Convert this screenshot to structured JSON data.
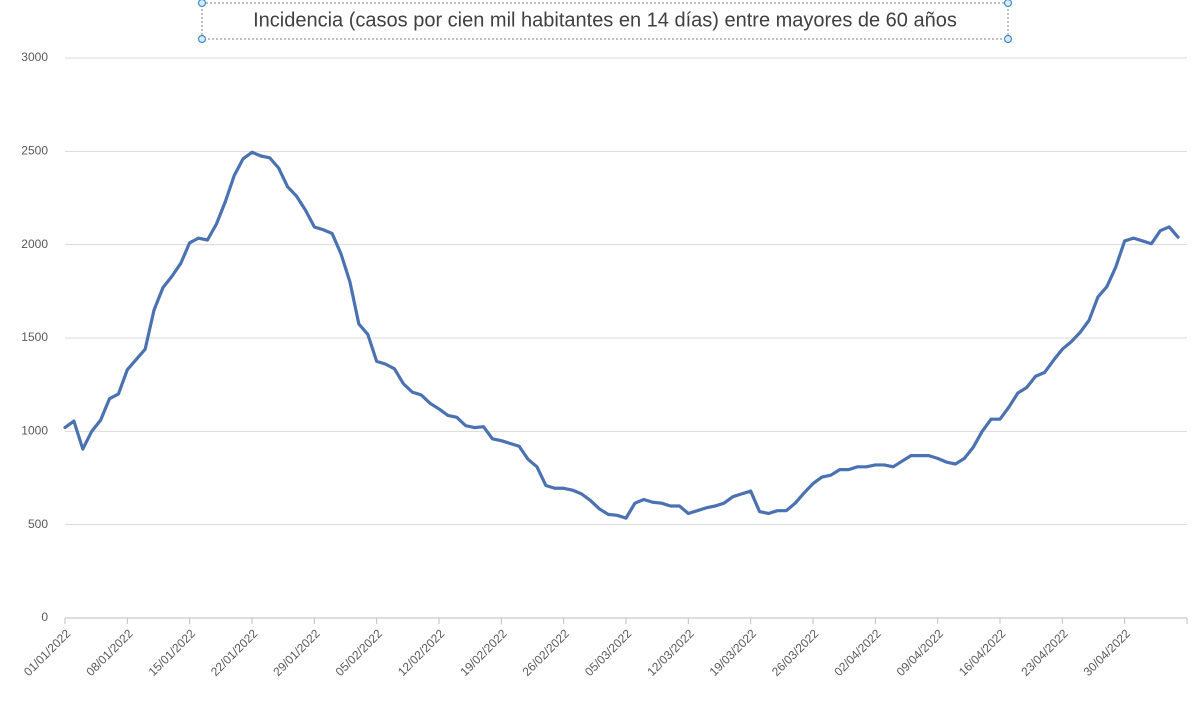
{
  "chart_data": {
    "type": "line",
    "title": "Incidencia (casos por cien mil habitantes en 14 días) entre mayores de 60 años",
    "color": "#4a72b2",
    "grid": true,
    "ylim": [
      0,
      3000
    ],
    "yticks": [
      0,
      500,
      1000,
      1500,
      2000,
      2500,
      3000
    ],
    "xticks": [
      "01/01/2022",
      "08/01/2022",
      "15/01/2022",
      "22/01/2022",
      "29/01/2022",
      "05/02/2022",
      "12/02/2022",
      "19/02/2022",
      "26/02/2022",
      "05/03/2022",
      "12/03/2022",
      "19/03/2022",
      "26/03/2022",
      "02/04/2022",
      "09/04/2022",
      "16/04/2022",
      "23/04/2022",
      "30/04/2022"
    ],
    "x": [
      "01/01/2022",
      "02/01/2022",
      "03/01/2022",
      "04/01/2022",
      "05/01/2022",
      "06/01/2022",
      "07/01/2022",
      "08/01/2022",
      "09/01/2022",
      "10/01/2022",
      "11/01/2022",
      "12/01/2022",
      "13/01/2022",
      "14/01/2022",
      "15/01/2022",
      "16/01/2022",
      "17/01/2022",
      "18/01/2022",
      "19/01/2022",
      "20/01/2022",
      "21/01/2022",
      "22/01/2022",
      "23/01/2022",
      "24/01/2022",
      "25/01/2022",
      "26/01/2022",
      "27/01/2022",
      "28/01/2022",
      "29/01/2022",
      "30/01/2022",
      "31/01/2022",
      "01/02/2022",
      "02/02/2022",
      "03/02/2022",
      "04/02/2022",
      "05/02/2022",
      "06/02/2022",
      "07/02/2022",
      "08/02/2022",
      "09/02/2022",
      "10/02/2022",
      "11/02/2022",
      "12/02/2022",
      "13/02/2022",
      "14/02/2022",
      "15/02/2022",
      "16/02/2022",
      "17/02/2022",
      "18/02/2022",
      "19/02/2022",
      "20/02/2022",
      "21/02/2022",
      "22/02/2022",
      "23/02/2022",
      "24/02/2022",
      "25/02/2022",
      "26/02/2022",
      "27/02/2022",
      "28/02/2022",
      "01/03/2022",
      "02/03/2022",
      "03/03/2022",
      "04/03/2022",
      "05/03/2022",
      "06/03/2022",
      "07/03/2022",
      "08/03/2022",
      "09/03/2022",
      "10/03/2022",
      "11/03/2022",
      "12/03/2022",
      "13/03/2022",
      "14/03/2022",
      "15/03/2022",
      "16/03/2022",
      "17/03/2022",
      "18/03/2022",
      "19/03/2022",
      "20/03/2022",
      "21/03/2022",
      "22/03/2022",
      "23/03/2022",
      "24/03/2022",
      "25/03/2022",
      "26/03/2022",
      "27/03/2022",
      "28/03/2022",
      "29/03/2022",
      "30/03/2022",
      "31/03/2022",
      "01/04/2022",
      "02/04/2022",
      "03/04/2022",
      "04/04/2022",
      "05/04/2022",
      "06/04/2022",
      "07/04/2022",
      "08/04/2022",
      "09/04/2022",
      "10/04/2022",
      "11/04/2022",
      "12/04/2022",
      "13/04/2022",
      "14/04/2022",
      "15/04/2022",
      "16/04/2022",
      "17/04/2022",
      "18/04/2022",
      "19/04/2022",
      "20/04/2022",
      "21/04/2022",
      "22/04/2022",
      "23/04/2022",
      "24/04/2022",
      "25/04/2022",
      "26/04/2022",
      "27/04/2022",
      "28/04/2022",
      "29/04/2022",
      "30/04/2022",
      "01/05/2022",
      "02/05/2022",
      "03/05/2022",
      "04/05/2022",
      "05/05/2022",
      "06/05/2022"
    ],
    "values": [
      1020,
      1055,
      905,
      1000,
      1060,
      1175,
      1200,
      1330,
      1385,
      1440,
      1650,
      1770,
      1830,
      1900,
      2010,
      2035,
      2025,
      2110,
      2230,
      2370,
      2460,
      2495,
      2475,
      2465,
      2410,
      2310,
      2260,
      2185,
      2095,
      2080,
      2060,
      1950,
      1800,
      1575,
      1520,
      1375,
      1360,
      1335,
      1255,
      1210,
      1195,
      1150,
      1120,
      1085,
      1075,
      1030,
      1020,
      1025,
      960,
      950,
      935,
      920,
      850,
      810,
      710,
      695,
      695,
      685,
      665,
      630,
      585,
      555,
      550,
      535,
      615,
      635,
      620,
      615,
      600,
      600,
      560,
      575,
      590,
      600,
      615,
      650,
      665,
      680,
      570,
      560,
      575,
      575,
      615,
      670,
      720,
      755,
      765,
      795,
      795,
      810,
      810,
      820,
      820,
      810,
      840,
      870,
      870,
      870,
      855,
      835,
      825,
      855,
      915,
      1000,
      1065,
      1065,
      1130,
      1205,
      1235,
      1295,
      1315,
      1380,
      1440,
      1480,
      1530,
      1595,
      1720,
      1775,
      1880,
      2020,
      2035,
      2020,
      2005,
      2075,
      2095,
      2040
    ]
  }
}
